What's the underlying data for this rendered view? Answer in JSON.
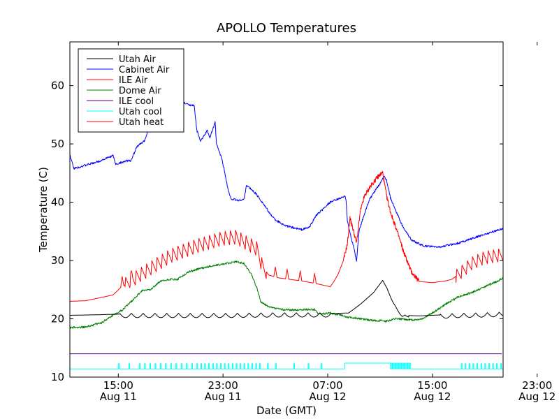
{
  "chart_data": {
    "type": "line",
    "title": "APOLLO Temperatures",
    "xlabel": "Date (GMT)",
    "ylabel": "Temperature (C)",
    "x_unit": "hours since Aug 11 00:00 GMT",
    "xlim": [
      11.3,
      44.4
    ],
    "ylim": [
      10,
      67.5
    ],
    "yticks": [
      10,
      20,
      30,
      40,
      50,
      60
    ],
    "xticks": [
      {
        "x": 15,
        "time": "15:00",
        "date": "Aug 11"
      },
      {
        "x": 23,
        "time": "23:00",
        "date": "Aug 11"
      },
      {
        "x": 31,
        "time": "07:00",
        "date": "Aug 12"
      },
      {
        "x": 39,
        "time": "15:00",
        "date": "Aug 12"
      },
      {
        "x": 47,
        "time": "23:00",
        "date": "Aug 12"
      }
    ],
    "legend_position": "top-left",
    "series": [
      {
        "name": "Utah Air",
        "color": "#000000",
        "kind": "oscillating",
        "points": [
          [
            11.3,
            20.6
          ],
          [
            13.5,
            20.7
          ],
          [
            15,
            20.8
          ],
          [
            17,
            20.8
          ],
          [
            23,
            20.8
          ],
          [
            27,
            20.9
          ],
          [
            31,
            20.9
          ],
          [
            32.6,
            21.0
          ],
          [
            33.5,
            22.5
          ],
          [
            34.5,
            24.5
          ],
          [
            35.2,
            26.6
          ],
          [
            35.7,
            24.5
          ],
          [
            36.2,
            22.0
          ],
          [
            36.7,
            20.6
          ],
          [
            38,
            20.5
          ],
          [
            39,
            20.6
          ],
          [
            41,
            20.8
          ],
          [
            43,
            20.9
          ],
          [
            44.4,
            21.0
          ]
        ],
        "oscillation_windows": [
          [
            15.1,
            31.2,
            0.75,
            0.9
          ],
          [
            35.5,
            37.2,
            0.35,
            0.7
          ],
          [
            39.6,
            44.4,
            0.75,
            0.9
          ]
        ]
      },
      {
        "name": "Cabinet Air",
        "color": "#0000ff",
        "kind": "curve",
        "points": [
          [
            11.3,
            48.1
          ],
          [
            11.6,
            45.8
          ],
          [
            12.3,
            46.2
          ],
          [
            13.5,
            47.0
          ],
          [
            14.6,
            48.0
          ],
          [
            14.8,
            46.5
          ],
          [
            15.5,
            47.0
          ],
          [
            16,
            47.2
          ],
          [
            16.4,
            49.5
          ],
          [
            17,
            50.5
          ],
          [
            17.3,
            52.6
          ],
          [
            18,
            54
          ],
          [
            19,
            56
          ],
          [
            20,
            57
          ],
          [
            20.8,
            56.5
          ],
          [
            21,
            52.3
          ],
          [
            21.3,
            50.5
          ],
          [
            21.8,
            52.3
          ],
          [
            22,
            51.1
          ],
          [
            22.4,
            53.7
          ],
          [
            22.5,
            50.0
          ],
          [
            22.9,
            47.5
          ],
          [
            23.1,
            45.5
          ],
          [
            23.4,
            42.0
          ],
          [
            23.6,
            40.6
          ],
          [
            24.2,
            40.3
          ],
          [
            24.6,
            40.5
          ],
          [
            24.8,
            42.9
          ],
          [
            25.5,
            41.5
          ],
          [
            26,
            40.0
          ],
          [
            26.6,
            38.0
          ],
          [
            27,
            37.0
          ],
          [
            27.5,
            36.3
          ],
          [
            28,
            35.8
          ],
          [
            29,
            35.3
          ],
          [
            29.6,
            35.7
          ],
          [
            30.1,
            37.7
          ],
          [
            30.6,
            38.7
          ],
          [
            31.2,
            40.0
          ],
          [
            32.3,
            41.0
          ],
          [
            32.4,
            40.5
          ],
          [
            32.5,
            36.8
          ],
          [
            32.8,
            33.8
          ],
          [
            33.0,
            32.2
          ],
          [
            33.2,
            29.9
          ],
          [
            33.4,
            35.1
          ],
          [
            33.8,
            38.0
          ],
          [
            34.2,
            40.5
          ],
          [
            35.0,
            43.2
          ],
          [
            35.3,
            44.5
          ],
          [
            35.5,
            43.8
          ],
          [
            35.8,
            40.7
          ],
          [
            36.2,
            38.5
          ],
          [
            36.7,
            36.0
          ],
          [
            37.4,
            33.5
          ],
          [
            38.3,
            32.5
          ],
          [
            39.5,
            32.3
          ],
          [
            41,
            33.0
          ],
          [
            43,
            34.5
          ],
          [
            44.4,
            35.5
          ]
        ]
      },
      {
        "name": "ILE Air",
        "color": "#ff0000",
        "kind": "sawtooth",
        "points": [
          [
            11.3,
            23.0
          ],
          [
            12.5,
            23.1
          ],
          [
            14,
            23.8
          ],
          [
            14.6,
            24.1
          ],
          [
            15.2,
            25.4
          ],
          [
            17,
            28.0
          ],
          [
            19,
            30.8
          ],
          [
            21,
            32.5
          ],
          [
            23,
            33.8
          ],
          [
            24,
            34.0
          ],
          [
            24.8,
            33.0
          ],
          [
            25.6,
            32.0
          ],
          [
            26,
            29.0
          ],
          [
            26.5,
            27.5
          ],
          [
            27.3,
            27.0
          ],
          [
            28,
            26.8
          ],
          [
            29,
            26.5
          ],
          [
            30.2,
            26.0
          ],
          [
            31.2,
            25.5
          ],
          [
            31.5,
            26.5
          ],
          [
            31.8,
            27.7
          ],
          [
            32.2,
            30.0
          ],
          [
            32.5,
            32.8
          ],
          [
            32.7,
            37.3
          ],
          [
            33.0,
            34.8
          ],
          [
            33.2,
            33.0
          ],
          [
            33.5,
            38.5
          ],
          [
            33.8,
            41.0
          ],
          [
            34.2,
            42.5
          ],
          [
            34.8,
            44.3
          ],
          [
            35.2,
            45.1
          ],
          [
            35.5,
            41.0
          ],
          [
            35.8,
            38.3
          ],
          [
            36.3,
            35.0
          ],
          [
            36.8,
            31.5
          ],
          [
            37.4,
            28.0
          ],
          [
            38.0,
            26.4
          ],
          [
            39,
            26.2
          ],
          [
            40,
            26.5
          ],
          [
            40.5,
            26.8
          ],
          [
            41.2,
            28.0
          ],
          [
            42,
            29.5
          ],
          [
            43,
            30.5
          ],
          [
            44.4,
            31.0
          ]
        ],
        "sawtooth_windows": [
          [
            15.5,
            26.3,
            2.4
          ],
          [
            40.8,
            44.4,
            2.2
          ]
        ],
        "dips": [
          [
            15.3,
            24.3
          ],
          [
            16.0,
            25.2
          ],
          [
            27.0,
            26.5
          ],
          [
            27.9,
            25.7
          ],
          [
            28.9,
            25.3
          ],
          [
            30.0,
            25.8
          ]
        ]
      },
      {
        "name": "Dome Air",
        "color": "#008000",
        "kind": "curve",
        "points": [
          [
            11.3,
            18.5
          ],
          [
            12.5,
            18.6
          ],
          [
            13.7,
            19.3
          ],
          [
            14.5,
            20.5
          ],
          [
            15.3,
            21.5
          ],
          [
            16,
            23.0
          ],
          [
            16.8,
            24.8
          ],
          [
            17.5,
            25.1
          ],
          [
            18.2,
            26.4
          ],
          [
            19,
            26.8
          ],
          [
            19.5,
            26.7
          ],
          [
            20.3,
            28.0
          ],
          [
            21,
            28.5
          ],
          [
            22,
            29.0
          ],
          [
            23,
            29.4
          ],
          [
            24,
            29.8
          ],
          [
            24.6,
            29.5
          ],
          [
            25.2,
            27.5
          ],
          [
            25.6,
            25.2
          ],
          [
            25.9,
            22.8
          ],
          [
            26.2,
            22.5
          ],
          [
            26.5,
            22.0
          ],
          [
            27.5,
            21.6
          ],
          [
            28.5,
            21.5
          ],
          [
            29.4,
            21.6
          ],
          [
            30.0,
            21.6
          ],
          [
            30.3,
            20.8
          ],
          [
            31.2,
            21.0
          ],
          [
            31.6,
            20.8
          ],
          [
            32.0,
            20.7
          ],
          [
            32.5,
            20.3
          ],
          [
            33.5,
            20.0
          ],
          [
            34.5,
            19.7
          ],
          [
            35,
            19.7
          ],
          [
            35.5,
            19.6
          ],
          [
            36.2,
            20.0
          ],
          [
            37,
            19.9
          ],
          [
            37.5,
            19.8
          ],
          [
            38.2,
            20.0
          ],
          [
            39,
            21.0
          ],
          [
            40,
            22.5
          ],
          [
            41,
            23.8
          ],
          [
            42,
            24.5
          ],
          [
            43,
            25.5
          ],
          [
            44,
            26.5
          ],
          [
            44.4,
            27.0
          ]
        ]
      },
      {
        "name": "ILE cool",
        "color": "#4b0082",
        "kind": "flat",
        "points": [
          [
            11.3,
            14.0
          ],
          [
            44.4,
            14.0
          ]
        ]
      },
      {
        "name": "Utah cool",
        "color": "#00ffff",
        "kind": "pulses",
        "baseline": 11.4,
        "high": 12.3,
        "pulse_times": [
          15.0,
          15.8,
          16.6,
          17.0,
          17.4,
          17.8,
          18.2,
          18.6,
          19.0,
          19.4,
          19.8,
          20.2,
          20.6,
          21.0,
          21.3,
          21.6,
          21.9,
          22.2,
          22.5,
          22.8,
          23.1,
          23.4,
          23.7,
          24.0,
          24.3,
          24.6,
          24.9,
          25.2,
          25.5,
          25.8,
          26.4,
          27.0,
          28.4,
          29.5,
          30.5,
          41.2,
          41.5,
          41.8,
          42.1,
          42.4,
          42.7,
          43.0,
          43.3,
          43.6,
          43.9,
          44.2
        ],
        "plateau": [
          32.3,
          35.8,
          12.4
        ],
        "burst": [
          35.8,
          37.3
        ]
      },
      {
        "name": "Utah heat",
        "color": "#ff0000",
        "kind": "none",
        "points": []
      }
    ]
  }
}
